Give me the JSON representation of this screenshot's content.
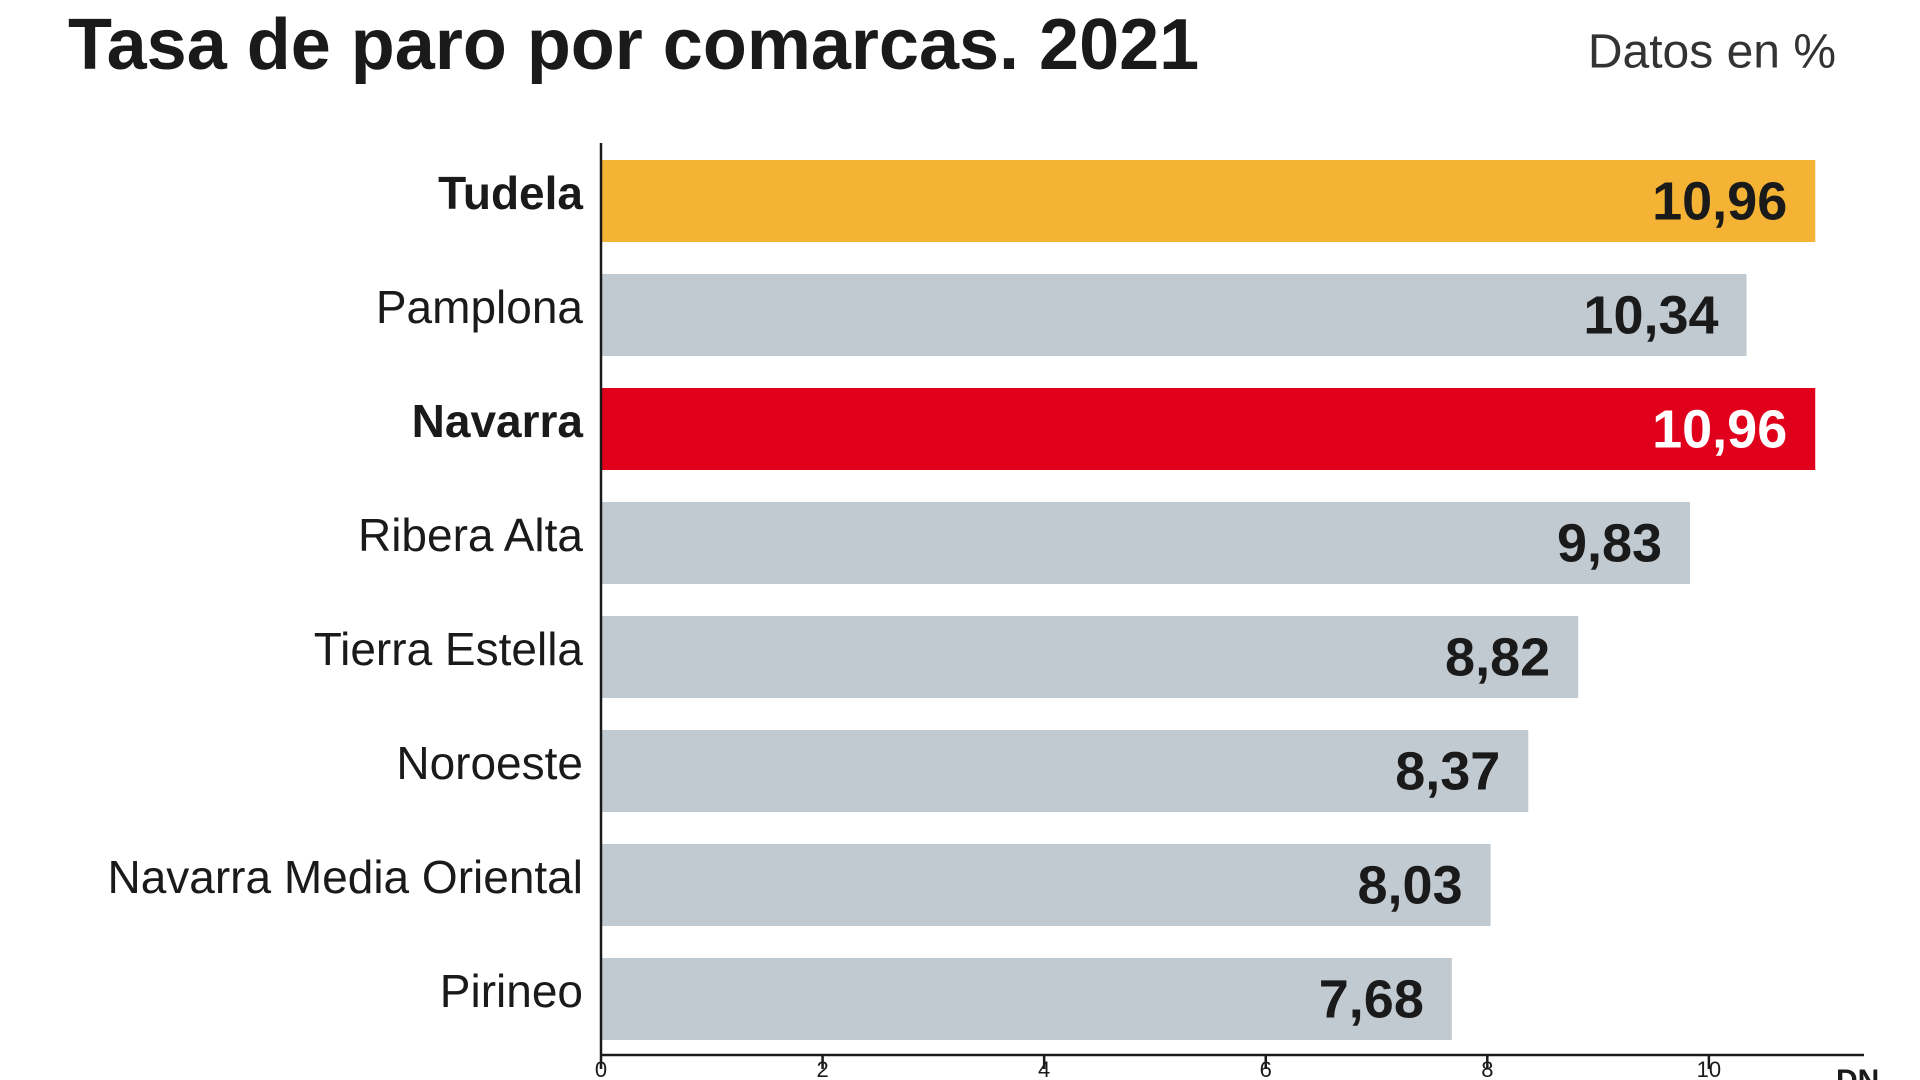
{
  "chart_data": {
    "type": "hbar",
    "title": "Tasa de paro por comarcas. 2021",
    "subtitle": "Datos en %",
    "source": "DN",
    "categories": [
      "Tudela",
      "Pamplona",
      "Navarra",
      "Ribera Alta",
      "Tierra Estella",
      "Noroeste",
      "Navarra Media Oriental",
      "Pirineo"
    ],
    "values": [
      10.96,
      10.34,
      10.96,
      9.83,
      8.82,
      8.37,
      8.03,
      7.68
    ],
    "value_labels": [
      "10,96",
      "10,34",
      "10,96",
      "9,83",
      "8,82",
      "8,37",
      "8,03",
      "7,68"
    ],
    "color": "#c2cad1",
    "colors": [
      "#f5b335",
      "#c2cad1",
      "#e0001b",
      "#c2cad1",
      "#c2cad1",
      "#c2cad1",
      "#c2cad1",
      "#c2cad1"
    ],
    "xlim": [
      0,
      11.4
    ],
    "xticks": [
      0,
      2,
      4,
      6,
      8,
      10
    ],
    "grid": false
  }
}
